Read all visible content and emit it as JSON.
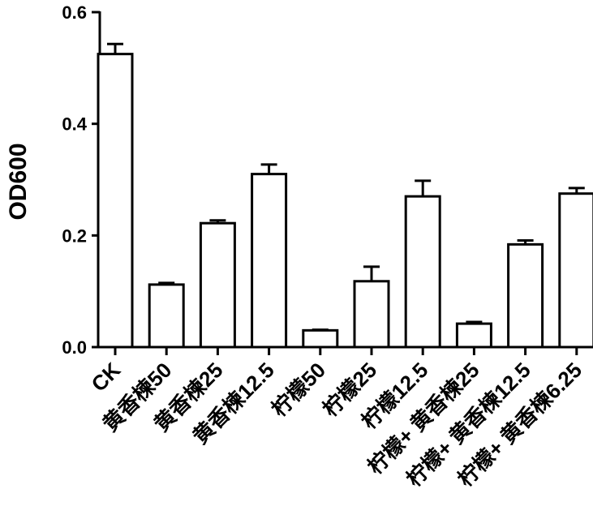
{
  "chart_data": {
    "type": "bar",
    "title": "",
    "xlabel": "",
    "ylabel": "OD600",
    "ylim": [
      0,
      0.6
    ],
    "yticks": [
      "0.0",
      "0.2",
      "0.4",
      "0.6"
    ],
    "grid": false,
    "categories": [
      "CK",
      "黄香楝50",
      "黄香楝25",
      "黄香楝12.5",
      "柠檬50",
      "柠檬25",
      "柠檬12.5",
      "柠檬+ 黄香楝25",
      "柠檬+ 黄香楝12.5",
      "柠檬+ 黄香楝6.25"
    ],
    "values": [
      0.525,
      0.112,
      0.222,
      0.31,
      0.03,
      0.118,
      0.27,
      0.042,
      0.184,
      0.275
    ],
    "errors": [
      0.018,
      0.003,
      0.005,
      0.017,
      0.001,
      0.026,
      0.028,
      0.003,
      0.007,
      0.01
    ]
  }
}
